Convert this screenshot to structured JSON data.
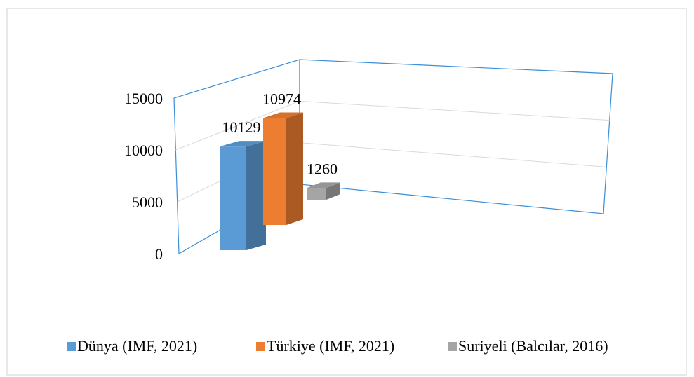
{
  "chart_data": {
    "type": "bar3d",
    "categories": [
      null
    ],
    "series": [
      {
        "name": "Dünya (IMF, 2021)",
        "color": "#5b9bd5",
        "values": [
          10129
        ]
      },
      {
        "name": "Türkiye (IMF, 2021)",
        "color": "#ed7d31",
        "values": [
          10974
        ]
      },
      {
        "name": "Suriyeli (Balcılar, 2016)",
        "color": "#a5a5a5",
        "values": [
          1260
        ]
      }
    ],
    "ylim": [
      0,
      15000
    ],
    "yticks": [
      0,
      5000,
      10000,
      15000
    ],
    "grid": true,
    "legend": "bottom"
  }
}
